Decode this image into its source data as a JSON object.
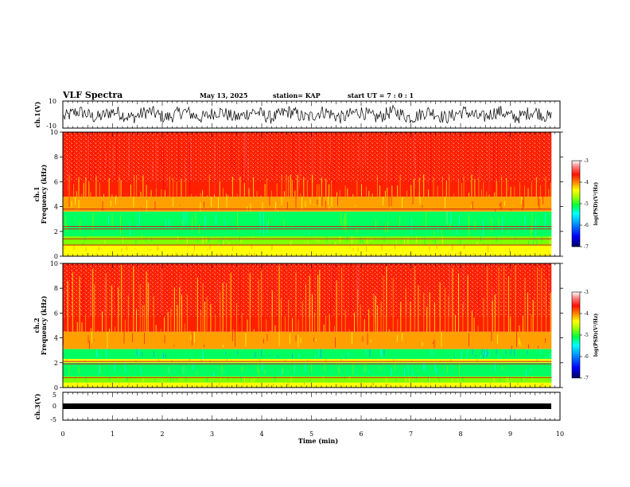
{
  "header": {
    "title": "VLF Spectra",
    "date": "May 13, 2025",
    "station": "station= KAP",
    "start": "start  UT  =   7 : 0  : 1"
  },
  "colors": {
    "spectrum": [
      "#000080",
      "#0000ff",
      "#00a0ff",
      "#00ffff",
      "#00ff60",
      "#7fff00",
      "#ffff00",
      "#ffa000",
      "#ff2000",
      "#ffd0d0"
    ]
  },
  "chart_data": [
    {
      "type": "line",
      "id": "ch1-waveform",
      "ylabel": "ch.1(V)",
      "ylim": [
        -10,
        10
      ],
      "y_tick_labels": [
        "10",
        "-10"
      ],
      "xlim": [
        0,
        10
      ],
      "data_extent_min": 9.83
    },
    {
      "type": "heatmap",
      "id": "ch1-spectrogram",
      "ylabel_line1": "ch.1",
      "ylabel_line2": "Frequency  (kHz)",
      "ylim": [
        0,
        10
      ],
      "y_tick_labels": [
        "0",
        "2",
        "4",
        "6",
        "8",
        "10"
      ],
      "colorbar": {
        "label": "log(PSD)(V²/Hz)",
        "range": [
          -7,
          -3
        ],
        "tick_labels": [
          "-7",
          "-6",
          "-5",
          "-4",
          "-3"
        ]
      },
      "bands_khz": [
        {
          "from": 0.0,
          "to": 0.3,
          "level": "orange-yellow"
        },
        {
          "from": 0.3,
          "to": 0.9,
          "level": "yellow"
        },
        {
          "from": 0.9,
          "to": 1.6,
          "level": "yellow-green"
        },
        {
          "from": 1.6,
          "to": 3.6,
          "level": "green"
        },
        {
          "from": 3.6,
          "to": 4.8,
          "level": "yellow-orange"
        },
        {
          "from": 4.8,
          "to": 10.0,
          "level": "red"
        }
      ],
      "lines_khz": [
        0.9,
        1.4,
        2.2,
        2.4,
        3.8
      ]
    },
    {
      "type": "heatmap",
      "id": "ch2-spectrogram",
      "ylabel_line1": "ch.2",
      "ylabel_line2": "Frequency  (kHz)",
      "ylim": [
        0,
        10
      ],
      "y_tick_labels": [
        "0",
        "2",
        "4",
        "6",
        "8",
        "10"
      ],
      "colorbar": {
        "label": "log(PSD)(V²/Hz)",
        "range": [
          -7,
          -3
        ],
        "tick_labels": [
          "-7",
          "-6",
          "-5",
          "-4",
          "-3"
        ]
      },
      "bands_khz": [
        {
          "from": 0.0,
          "to": 0.4,
          "level": "orange-yellow"
        },
        {
          "from": 0.4,
          "to": 0.9,
          "level": "yellow-green"
        },
        {
          "from": 0.9,
          "to": 2.0,
          "level": "green"
        },
        {
          "from": 2.0,
          "to": 2.3,
          "level": "yellow"
        },
        {
          "from": 2.3,
          "to": 3.1,
          "level": "green-cyan"
        },
        {
          "from": 3.1,
          "to": 4.5,
          "level": "yellow-orange"
        },
        {
          "from": 4.5,
          "to": 10.0,
          "level": "red"
        }
      ],
      "lines_khz": [
        0.8,
        1.9,
        2.1
      ]
    },
    {
      "type": "line",
      "id": "ch3-waveform",
      "ylabel": "ch.3(V)",
      "ylim": [
        -5,
        5
      ],
      "y_tick_labels": [
        "5",
        "0",
        "-5"
      ],
      "xlim": [
        0,
        10
      ],
      "level": 0
    }
  ],
  "x_axis": {
    "label": "Time  (min)",
    "range": [
      0,
      10
    ],
    "tick_labels": [
      "0",
      "1",
      "2",
      "3",
      "4",
      "5",
      "6",
      "7",
      "8",
      "9",
      "10"
    ]
  }
}
